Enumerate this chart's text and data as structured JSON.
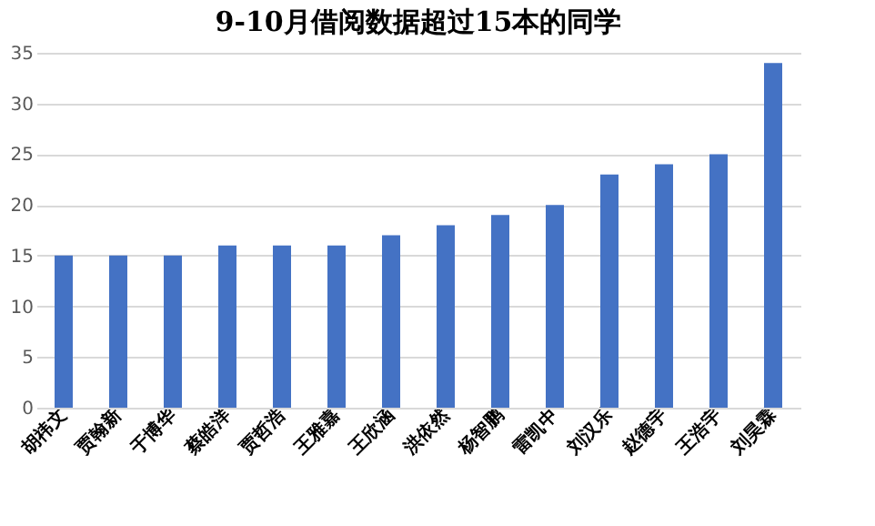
{
  "chart_data": {
    "type": "bar",
    "title": "9-10月借阅数据超过15本的同学",
    "categories": [
      "胡祎文",
      "贾翰新",
      "于博华",
      "蔡皓洋",
      "贾哲浩",
      "王雅嘉",
      "王欣涵",
      "洪依然",
      "杨智鹏",
      "雷凯中",
      "刘汉乐",
      "赵德宇",
      "王浩宇",
      "刘昊霖"
    ],
    "values": [
      15,
      15,
      15,
      16,
      16,
      16,
      17,
      18,
      19,
      20,
      23,
      24,
      25,
      34
    ],
    "color": "#4472c4",
    "ylim": [
      0,
      35
    ],
    "yticks": [
      0,
      5,
      10,
      15,
      20,
      25,
      30,
      35
    ],
    "grid": "y"
  }
}
